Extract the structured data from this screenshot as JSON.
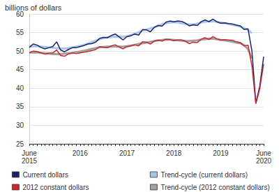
{
  "chart_data": {
    "type": "line",
    "title": "billions of dollars",
    "categories": [
      "June\n2015",
      null,
      null,
      null,
      null,
      null,
      null,
      null,
      null,
      null,
      null,
      null,
      null,
      "2016",
      null,
      null,
      null,
      null,
      null,
      null,
      null,
      null,
      null,
      null,
      null,
      "2017",
      null,
      null,
      null,
      null,
      null,
      null,
      null,
      null,
      null,
      null,
      null,
      "2018",
      null,
      null,
      null,
      null,
      null,
      null,
      null,
      null,
      null,
      null,
      null,
      "2019",
      null,
      null,
      null,
      null,
      null,
      null,
      null,
      null,
      null,
      null,
      "June\n2020"
    ],
    "series": [
      {
        "name": "Current dollars",
        "color": "#1b2466",
        "line_style": "solid",
        "values": [
          51.0,
          51.9,
          51.6,
          51.0,
          50.6,
          50.9,
          51.2,
          52.5,
          50.3,
          49.8,
          50.4,
          50.9,
          50.9,
          51.2,
          51.5,
          51.9,
          52.0,
          52.4,
          53.4,
          53.7,
          53.6,
          54.2,
          54.6,
          53.8,
          53.0,
          53.9,
          54.1,
          54.6,
          54.3,
          55.8,
          55.7,
          55.2,
          56.4,
          56.9,
          56.7,
          57.8,
          58.1,
          57.9,
          58.1,
          58.0,
          57.5,
          56.8,
          57.1,
          56.9,
          57.9,
          58.4,
          57.9,
          58.6,
          57.9,
          57.5,
          57.6,
          57.4,
          57.3,
          57.0,
          56.8,
          55.8,
          56.0,
          50.0,
          36.0,
          40.5,
          48.5
        ]
      },
      {
        "name": "Trend-cycle (current dollars)",
        "color": "#a9c6ea",
        "line_style": "solid",
        "values": [
          51.2,
          51.3,
          51.3,
          51.2,
          51.1,
          51.0,
          50.9,
          50.8,
          50.7,
          50.7,
          50.8,
          51.0,
          51.2,
          51.4,
          51.7,
          52.0,
          52.4,
          52.8,
          53.2,
          53.5,
          53.7,
          53.8,
          53.9,
          53.9,
          53.9,
          54.0,
          54.3,
          54.7,
          55.1,
          55.5,
          55.8,
          56.1,
          56.4,
          56.8,
          57.2,
          57.5,
          57.7,
          57.8,
          57.7,
          57.5,
          57.3,
          57.2,
          57.2,
          57.4,
          57.7,
          57.9,
          58.0,
          58.0,
          57.9,
          57.7,
          57.5,
          57.3,
          57.1,
          56.9,
          56.6,
          56.2,
          55.7,
          54.8,
          null,
          null,
          null
        ]
      },
      {
        "name": "2012 constant dollars",
        "color": "#c8282d",
        "line_style": "solid",
        "values": [
          49.5,
          50.0,
          49.9,
          49.5,
          49.2,
          49.4,
          49.5,
          50.3,
          48.8,
          48.6,
          49.2,
          49.5,
          49.3,
          49.5,
          49.7,
          49.9,
          50.1,
          50.4,
          51.2,
          51.0,
          50.9,
          51.4,
          51.7,
          51.1,
          50.6,
          51.2,
          51.4,
          51.7,
          51.4,
          52.5,
          52.4,
          51.9,
          52.7,
          52.9,
          52.7,
          53.2,
          53.1,
          52.8,
          53.0,
          53.0,
          52.6,
          52.0,
          52.4,
          52.3,
          53.2,
          53.6,
          53.1,
          53.9,
          53.3,
          53.0,
          53.1,
          53.0,
          52.9,
          52.5,
          52.3,
          51.4,
          51.6,
          46.0,
          35.8,
          39.8,
          46.5
        ]
      },
      {
        "name": "Trend-cycle (2012 constant dollars)",
        "color": "#a0a0a0",
        "line_style": "solid",
        "values": [
          49.6,
          49.6,
          49.6,
          49.5,
          49.4,
          49.3,
          49.2,
          49.2,
          49.2,
          49.3,
          49.4,
          49.5,
          49.7,
          49.9,
          50.1,
          50.3,
          50.6,
          50.8,
          51.0,
          51.1,
          51.2,
          51.2,
          51.2,
          51.2,
          51.2,
          51.3,
          51.5,
          51.7,
          51.9,
          52.1,
          52.3,
          52.5,
          52.7,
          52.9,
          53.0,
          53.1,
          53.1,
          53.0,
          52.9,
          52.8,
          52.7,
          52.7,
          52.8,
          52.9,
          53.1,
          53.2,
          53.3,
          53.3,
          53.2,
          53.0,
          52.9,
          52.7,
          52.5,
          52.3,
          52.1,
          51.6,
          50.5,
          48.0,
          null,
          null,
          null
        ]
      }
    ],
    "ylim": [
      25,
      60
    ],
    "yticks": [
      25,
      30,
      35,
      40,
      45,
      50,
      55,
      60
    ],
    "grid": true,
    "legend": "bottom"
  }
}
